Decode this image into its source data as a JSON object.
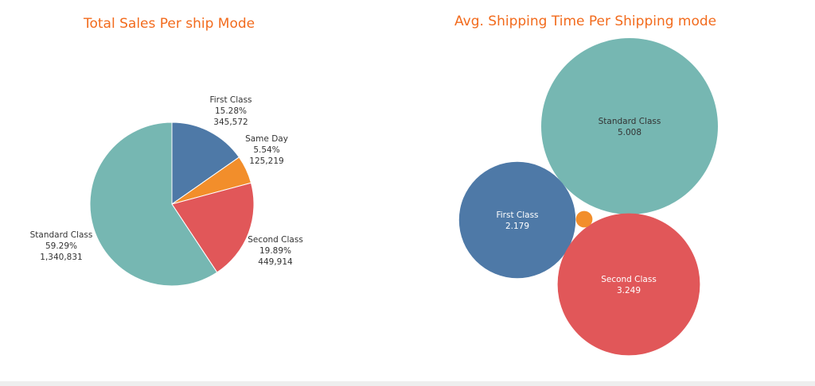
{
  "chart_data": [
    {
      "type": "pie",
      "title": "Total Sales Per ship Mode",
      "slices": [
        {
          "name": "First Class",
          "value": 345572,
          "value_label": "345,572",
          "percent_label": "15.28%",
          "color": "#4e79a7"
        },
        {
          "name": "Same Day",
          "value": 125219,
          "value_label": "125,219",
          "percent_label": "5.54%",
          "color": "#f28e2b"
        },
        {
          "name": "Second Class",
          "value": 449914,
          "value_label": "449,914",
          "percent_label": "19.89%",
          "color": "#e15759"
        },
        {
          "name": "Standard Class",
          "value": 1340831,
          "value_label": "1,340,831",
          "percent_label": "59.29%",
          "color": "#76b7b2"
        }
      ]
    },
    {
      "type": "bubble",
      "title": "Avg.  Shipping Time Per Shipping  mode",
      "bubbles": [
        {
          "name": "Standard Class",
          "value": 5.008,
          "value_label": "5.008",
          "color": "#76b7b2",
          "label_color": "#333333"
        },
        {
          "name": "First Class",
          "value": 2.179,
          "value_label": "2.179",
          "color": "#4e79a7",
          "label_color": "#ffffff"
        },
        {
          "name": "Second Class",
          "value": 3.249,
          "value_label": "3.249",
          "color": "#e15759",
          "label_color": "#ffffff"
        },
        {
          "name": "Same Day",
          "value": 0.044,
          "value_label": "",
          "color": "#f28e2b",
          "label_color": "#ffffff"
        }
      ]
    }
  ]
}
